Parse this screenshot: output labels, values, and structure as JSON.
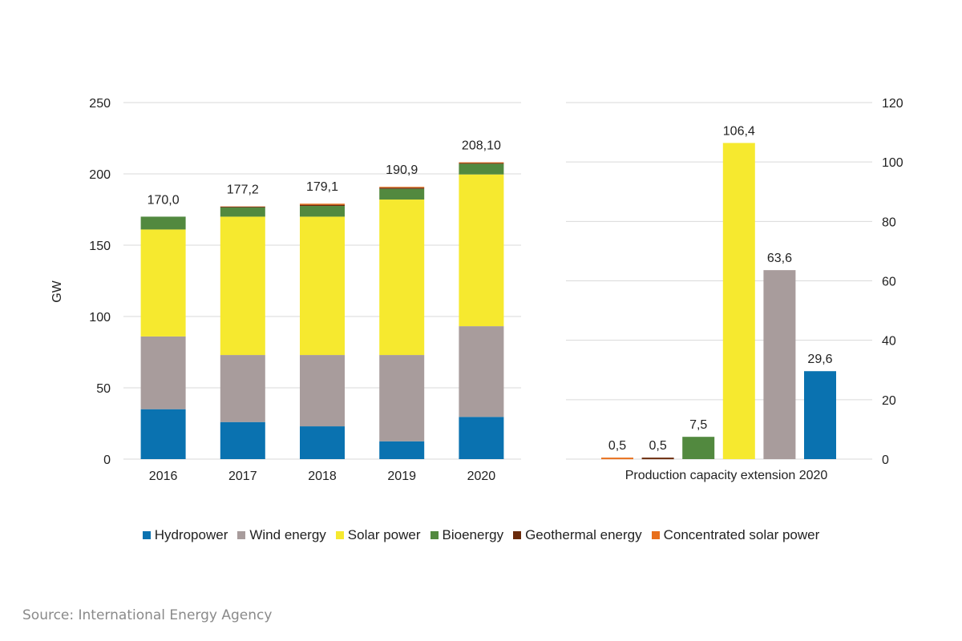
{
  "colors": {
    "hydropower": "#0a72b0",
    "wind": "#a89c9c",
    "solar": "#f6e92f",
    "bio": "#52893f",
    "geo": "#6a2b0c",
    "csp": "#e86f1c",
    "grid": "#d9d9d9"
  },
  "chart_data": [
    {
      "type": "bar",
      "stacked": true,
      "categories": [
        "2016",
        "2017",
        "2018",
        "2019",
        "2020"
      ],
      "ylabel": "GW",
      "ylim": [
        0,
        250
      ],
      "yticks": [
        "0",
        "50",
        "100",
        "150",
        "200",
        "250"
      ],
      "series": [
        {
          "name": "Hydropower",
          "color_key": "hydropower",
          "values": [
            35,
            26,
            23,
            12.5,
            29.6
          ]
        },
        {
          "name": "Wind energy",
          "color_key": "wind",
          "values": [
            51,
            47,
            50,
            60.5,
            63.6
          ]
        },
        {
          "name": "Solar power",
          "color_key": "solar",
          "values": [
            75,
            97,
            97,
            109,
            106.4
          ]
        },
        {
          "name": "Bioenergy",
          "color_key": "bio",
          "values": [
            9,
            6.5,
            7.5,
            7.5,
            7.5
          ]
        },
        {
          "name": "Geothermal energy",
          "color_key": "geo",
          "values": [
            0,
            0.5,
            0.8,
            0.8,
            0.5
          ]
        },
        {
          "name": "Concentrated solar power",
          "color_key": "csp",
          "values": [
            0,
            0.2,
            0.8,
            0.6,
            0.5
          ]
        }
      ],
      "totals_labels": [
        "170,0",
        "177,2",
        "179,1",
        "190,9",
        "208,10"
      ],
      "grid": true
    },
    {
      "type": "bar",
      "xlabel": "Production capacity extension 2020",
      "ylim": [
        0,
        120
      ],
      "yticks": [
        "0",
        "20",
        "40",
        "60",
        "80",
        "100",
        "120"
      ],
      "bars": [
        {
          "color_key": "csp",
          "value": 0.5,
          "label": "0,5"
        },
        {
          "color_key": "geo",
          "value": 0.5,
          "label": "0,5"
        },
        {
          "color_key": "bio",
          "value": 7.5,
          "label": "7,5"
        },
        {
          "color_key": "solar",
          "value": 106.4,
          "label": "106,4"
        },
        {
          "color_key": "wind",
          "value": 63.6,
          "label": "63,6"
        },
        {
          "color_key": "hydropower",
          "value": 29.6,
          "label": "29,6"
        }
      ],
      "grid": true
    }
  ],
  "legend": [
    {
      "label": "Hydropower",
      "color_key": "hydropower"
    },
    {
      "label": "Wind energy",
      "color_key": "wind"
    },
    {
      "label": "Solar power",
      "color_key": "solar"
    },
    {
      "label": "Bioenergy",
      "color_key": "bio"
    },
    {
      "label": "Geothermal energy",
      "color_key": "geo"
    },
    {
      "label": "Concentrated solar power",
      "color_key": "csp"
    }
  ],
  "source": "Source: International Energy Agency"
}
